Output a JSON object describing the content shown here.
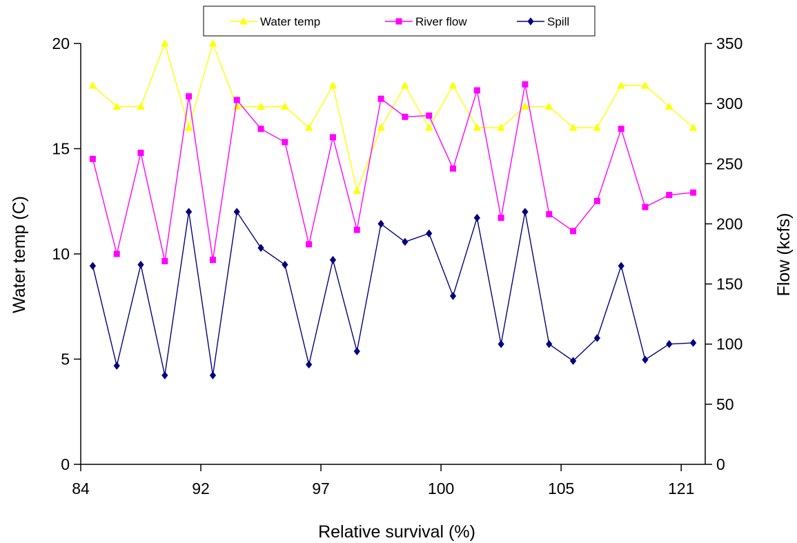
{
  "chart_data": {
    "type": "line",
    "title": "",
    "xlabel": "Relative survival (%)",
    "ylabel": "Water temp (C)",
    "y2label": "Flow (kcfs)",
    "x_tick_labels": [
      "84",
      "92",
      "97",
      "100",
      "105",
      "121"
    ],
    "ylim": [
      0,
      20
    ],
    "y_ticks": [
      0,
      5,
      10,
      15,
      20
    ],
    "y2lim": [
      0,
      350
    ],
    "y2_ticks": [
      0,
      50,
      100,
      150,
      200,
      250,
      300,
      350
    ],
    "grid": false,
    "legend_position": "top",
    "series": [
      {
        "name": "Water temp",
        "axis": "left",
        "color": "#FFFF00",
        "marker": "triangle",
        "values": [
          18,
          17,
          17,
          20,
          16,
          20,
          17,
          17,
          17,
          16,
          18,
          13,
          16,
          18,
          16,
          18,
          16,
          16,
          17,
          17,
          16,
          16,
          18,
          18,
          17,
          16
        ]
      },
      {
        "name": "River flow",
        "axis": "right",
        "color": "#FF00FF",
        "marker": "square",
        "values": [
          254,
          175,
          259,
          169,
          306,
          170,
          303,
          279,
          268,
          183,
          272,
          195,
          304,
          289,
          290,
          246,
          311,
          205,
          316,
          208,
          194,
          219,
          279,
          214,
          224,
          226
        ]
      },
      {
        "name": "Spill",
        "axis": "right",
        "color": "#000080",
        "marker": "diamond",
        "values": [
          165,
          82,
          166,
          74,
          210,
          74,
          210,
          180,
          166,
          83,
          170,
          94,
          200,
          185,
          192,
          140,
          205,
          100,
          210,
          100,
          86,
          105,
          165,
          87,
          100,
          101
        ]
      }
    ]
  }
}
